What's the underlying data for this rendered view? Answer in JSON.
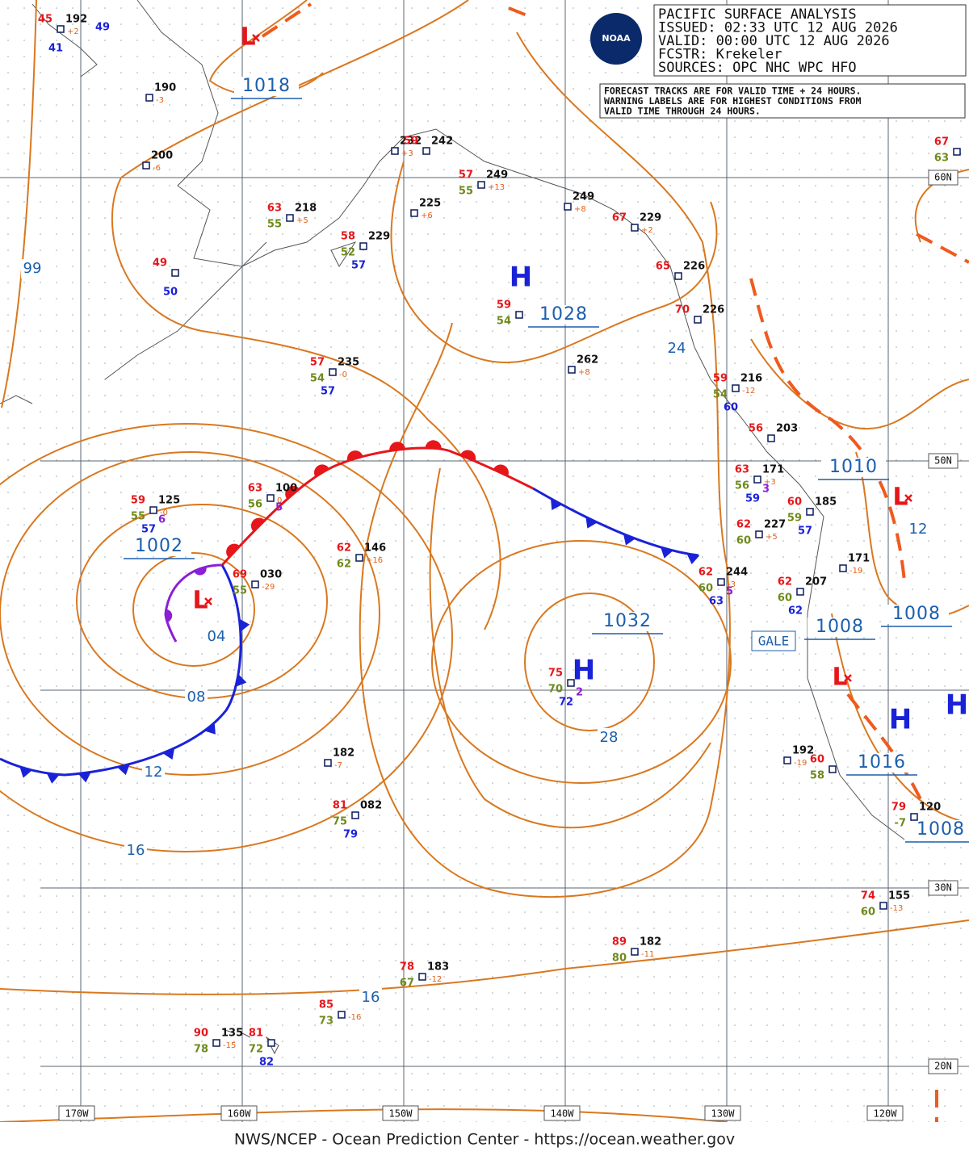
{
  "header": {
    "lines": [
      "PACIFIC SURFACE ANALYSIS",
      "ISSUED: 02:33 UTC 12 AUG 2026",
      "VALID:  00:00 UTC 12 AUG 2026",
      "FCSTR:  Krekeler",
      "SOURCES:  OPC NHC WPC HFO"
    ],
    "logo": "NOAA"
  },
  "note": [
    "FORECAST TRACKS ARE FOR VALID TIME + 24 HOURS.",
    "WARNING LABELS ARE FOR HIGHEST CONDITIONS FROM",
    "VALID TIME THROUGH 24 HOURS."
  ],
  "isobar_labels": [
    "1018",
    "99",
    "1028",
    "24",
    "1002",
    "04",
    "08",
    "12",
    "16",
    "1032",
    "28",
    "1010",
    "12",
    "1008",
    "1008",
    "1016",
    "1008",
    "16"
  ],
  "centers": [
    "H",
    "H",
    "H",
    "H",
    "L",
    "L",
    "L",
    "L"
  ],
  "warning": "GALE",
  "lon_labels": [
    "170W",
    "160W",
    "150W",
    "140W",
    "130W",
    "120W"
  ],
  "lat_labels": [
    "60N",
    "50N",
    "30N",
    "20N"
  ],
  "stations": [
    {
      "temp": "45",
      "pres": "192",
      "tend": "+2",
      "water": "41"
    },
    {
      "water": "49"
    },
    {
      "pres": "190",
      "tend": "-3"
    },
    {
      "pres": "200",
      "tend": "-6"
    },
    {
      "temp": "63",
      "pres": "218",
      "tend": "+5",
      "dew": "55"
    },
    {
      "temp": "49",
      "water": "50"
    },
    {
      "temp": "58",
      "pres": "229",
      "dew": "52",
      "water": "57"
    },
    {
      "pres": "232",
      "tend": "+3"
    },
    {
      "temp": "59",
      "pres": "242"
    },
    {
      "temp": "57",
      "pres": "249",
      "tend": "+13",
      "dew": "55"
    },
    {
      "pres": "225",
      "tend": "+6"
    },
    {
      "pres": "249",
      "tend": "+8"
    },
    {
      "temp": "59",
      "dew": "54"
    },
    {
      "pres": "262",
      "tend": "+8"
    },
    {
      "temp": "57",
      "pres": "235",
      "tend": "-0",
      "dew": "54",
      "water": "57"
    },
    {
      "temp": "67",
      "pres": "229",
      "tend": "+2"
    },
    {
      "temp": "65",
      "pres": "226"
    },
    {
      "temp": "70",
      "pres": "226"
    },
    {
      "temp": "59",
      "pres": "216",
      "tend": "-12",
      "dew": "54",
      "water": "60"
    },
    {
      "temp": "56",
      "pres": "203"
    },
    {
      "temp": "63",
      "pres": "171",
      "tend": "+3",
      "dew": "56",
      "water": "59",
      "extra": "3"
    },
    {
      "temp": "62",
      "pres": "227",
      "tend": "+5",
      "dew": "60"
    },
    {
      "temp": "60",
      "pres": "185",
      "dew": "59",
      "water": "57"
    },
    {
      "pres": "171",
      "tend": "-19"
    },
    {
      "temp": "62",
      "pres": "244",
      "tend": "-3",
      "dew": "60",
      "water": "63",
      "extra": "5"
    },
    {
      "temp": "62",
      "pres": "207",
      "dew": "60",
      "water": "62"
    },
    {
      "pres": "192",
      "tend": "-19"
    },
    {
      "temp": "60",
      "dew": "58"
    },
    {
      "temp": "79",
      "pres": "120",
      "dew": "-7"
    },
    {
      "temp": "67",
      "dew": "63"
    },
    {
      "temp": "74",
      "pres": "155",
      "tend": "-13",
      "dew": "60"
    },
    {
      "temp": "89",
      "pres": "182",
      "tend": "-11",
      "dew": "80"
    },
    {
      "temp": "78",
      "pres": "183",
      "tend": "-12",
      "dew": "67"
    },
    {
      "temp": "85",
      "tend": "-16",
      "dew": "73"
    },
    {
      "temp": "90",
      "pres": "135",
      "tend": "-15",
      "dew": "78"
    },
    {
      "temp": "81",
      "dew": "72",
      "water": "82"
    },
    {
      "temp": "81",
      "pres": "082",
      "dew": "75",
      "water": "79"
    },
    {
      "pres": "182",
      "tend": "-7"
    },
    {
      "temp": "62",
      "pres": "146",
      "tend": "+16",
      "dew": "62"
    },
    {
      "temp": "69",
      "pres": "030",
      "tend": "-29",
      "dew": "55"
    },
    {
      "temp": "63",
      "pres": "100",
      "tend": "0",
      "dew": "56",
      "extra": "5"
    },
    {
      "temp": "59",
      "pres": "125",
      "tend": "-0",
      "dew": "55",
      "water": "57",
      "extra": "6"
    },
    {
      "temp": "75",
      "dew": "70",
      "water": "72",
      "extra": "2"
    }
  ],
  "footer": "NWS/NCEP - Ocean Prediction Center - https://ocean.weather.gov"
}
